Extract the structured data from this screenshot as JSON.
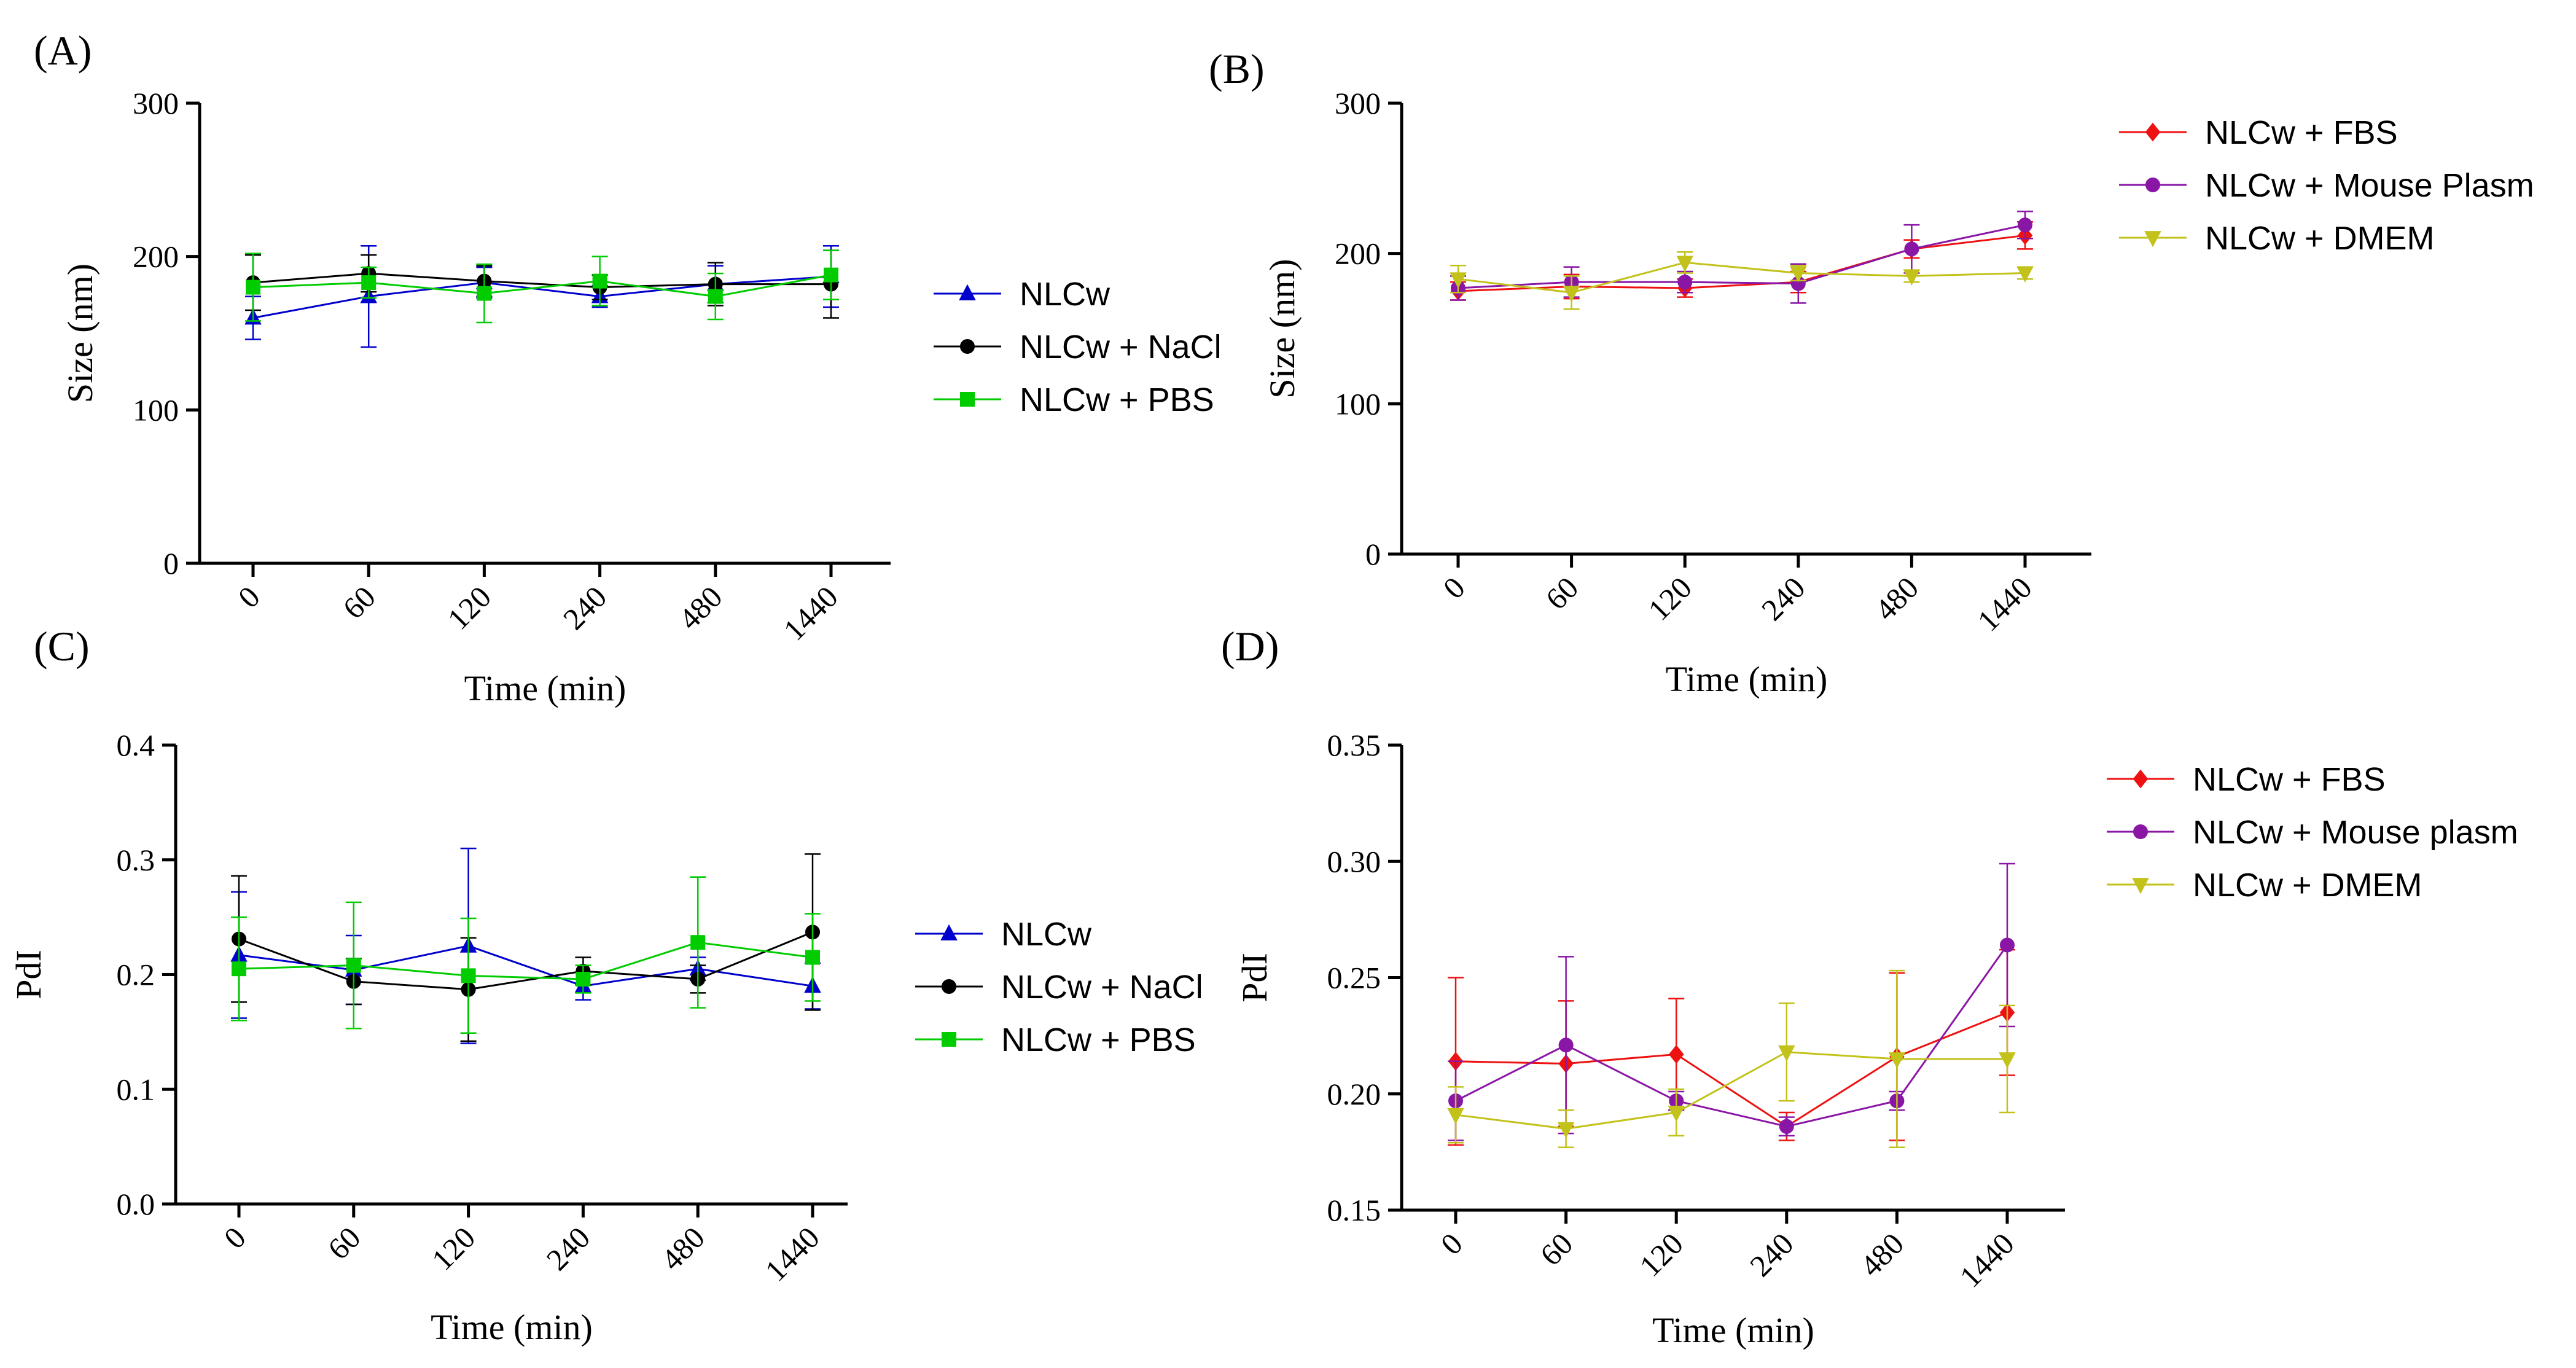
{
  "chart_data": [
    {
      "panel": "(A)",
      "type": "line",
      "categories": [
        "0",
        "60",
        "120",
        "240",
        "480",
        "1440"
      ],
      "xlabel": "Time (min)",
      "ylabel": "Size (nm)",
      "ylim": [
        0,
        300
      ],
      "yticks": [
        "0",
        "100",
        "200",
        "300"
      ],
      "legend_position": "right",
      "series": [
        {
          "name": "NLCw",
          "color": "#0000cc",
          "marker": "triangle-up",
          "values": [
            160,
            174,
            183,
            174,
            182,
            187
          ],
          "errors": [
            14,
            33,
            10,
            7,
            12,
            20
          ]
        },
        {
          "name": "NLCw + NaCl",
          "color": "#000000",
          "marker": "circle",
          "values": [
            183,
            189,
            184,
            180,
            182,
            182
          ],
          "errors": [
            18,
            12,
            10,
            8,
            14,
            22
          ]
        },
        {
          "name": "NLCw + PBS",
          "color": "#00cc00",
          "marker": "square",
          "values": [
            180,
            183,
            176,
            184,
            174,
            188
          ],
          "errors": [
            22,
            10,
            19,
            16,
            15,
            16
          ]
        }
      ]
    },
    {
      "panel": "(B)",
      "type": "line",
      "categories": [
        "0",
        "60",
        "120",
        "240",
        "480",
        "1440"
      ],
      "xlabel": "Time (min)",
      "ylabel": "Size (nm)",
      "ylim": [
        0,
        300
      ],
      "yticks": [
        "0",
        "100",
        "200",
        "300"
      ],
      "legend_position": "top-right",
      "series": [
        {
          "name": "NLCw + FBS",
          "color": "#ee1111",
          "marker": "diamond",
          "values": [
            175,
            178,
            177,
            181,
            203,
            212
          ],
          "errors": [
            6,
            8,
            6,
            7,
            6,
            9
          ]
        },
        {
          "name": "NLCw + Mouse Plasm",
          "color": "#8a16a6",
          "marker": "circle",
          "values": [
            177,
            181,
            181,
            180,
            203,
            219
          ],
          "errors": [
            8,
            10,
            7,
            13,
            16,
            9
          ]
        },
        {
          "name": "NLCw + DMEM",
          "color": "#c2c21a",
          "marker": "triangle-down",
          "values": [
            183,
            174,
            194,
            187,
            185,
            187
          ],
          "errors": [
            9,
            11,
            7,
            5,
            4,
            4
          ]
        }
      ]
    },
    {
      "panel": "(C)",
      "type": "line",
      "categories": [
        "0",
        "60",
        "120",
        "240",
        "480",
        "1440"
      ],
      "xlabel": "Time (min)",
      "ylabel": "PdI",
      "ylim": [
        0,
        0.4
      ],
      "yticks": [
        "0.0",
        "0.1",
        "0.2",
        "0.3",
        "0.4"
      ],
      "legend_position": "right",
      "series": [
        {
          "name": "NLCw",
          "color": "#0000cc",
          "marker": "triangle-up",
          "values": [
            0.217,
            0.204,
            0.225,
            0.19,
            0.205,
            0.19
          ],
          "errors": [
            0.055,
            0.03,
            0.085,
            0.012,
            0.01,
            0.02
          ]
        },
        {
          "name": "NLCw + NaCl",
          "color": "#000000",
          "marker": "circle",
          "values": [
            0.231,
            0.194,
            0.187,
            0.203,
            0.196,
            0.237
          ],
          "errors": [
            0.055,
            0.02,
            0.045,
            0.012,
            0.012,
            0.068
          ]
        },
        {
          "name": "NLCw + PBS",
          "color": "#00cc00",
          "marker": "square",
          "values": [
            0.205,
            0.208,
            0.199,
            0.196,
            0.228,
            0.215
          ],
          "errors": [
            0.045,
            0.055,
            0.05,
            0.012,
            0.057,
            0.038
          ]
        }
      ]
    },
    {
      "panel": "(D)",
      "type": "line",
      "categories": [
        "0",
        "60",
        "120",
        "240",
        "480",
        "1440"
      ],
      "xlabel": "Time (min)",
      "ylabel": "PdI",
      "ylim": [
        0.15,
        0.35
      ],
      "yticks": [
        "0.15",
        "0.20",
        "0.25",
        "0.30",
        "0.35"
      ],
      "legend_position": "top-right",
      "series": [
        {
          "name": "NLCw + FBS",
          "color": "#ee1111",
          "marker": "diamond",
          "values": [
            0.214,
            0.213,
            0.217,
            0.186,
            0.216,
            0.235
          ],
          "errors": [
            0.036,
            0.027,
            0.024,
            0.006,
            0.036,
            0.027
          ]
        },
        {
          "name": "NLCw + Mouse plasm",
          "color": "#8a16a6",
          "marker": "circle",
          "values": [
            0.197,
            0.221,
            0.197,
            0.186,
            0.197,
            0.264
          ],
          "errors": [
            0.017,
            0.038,
            0.004,
            0.004,
            0.004,
            0.035
          ]
        },
        {
          "name": "NLCw + DMEM",
          "color": "#c2c21a",
          "marker": "triangle-down",
          "values": [
            0.191,
            0.185,
            0.192,
            0.218,
            0.215,
            0.215
          ],
          "errors": [
            0.012,
            0.008,
            0.01,
            0.021,
            0.038,
            0.023
          ]
        }
      ]
    }
  ]
}
